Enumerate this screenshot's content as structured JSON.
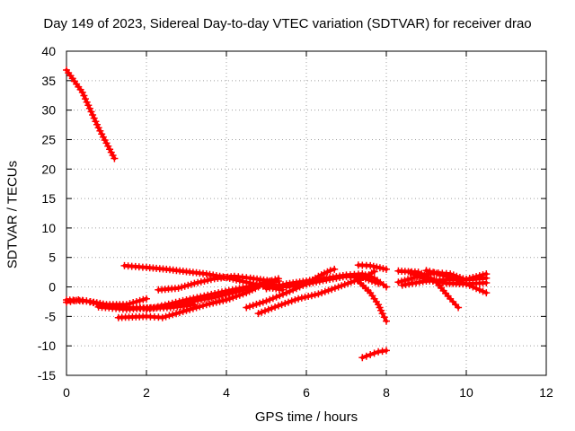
{
  "chart_data": {
    "type": "line",
    "title": "Day 149 of 2023, Sidereal Day-to-day VTEC variation (SDTVAR) for receiver drao",
    "xlabel": "GPS time / hours",
    "ylabel": "SDTVAR / TECUs",
    "xlim": [
      0,
      12
    ],
    "ylim": [
      -15,
      40
    ],
    "xticks": [
      0,
      2,
      4,
      6,
      8,
      10,
      12
    ],
    "yticks": [
      -15,
      -10,
      -5,
      0,
      5,
      10,
      15,
      20,
      25,
      30,
      35,
      40
    ],
    "grid": true,
    "color": "#ff0000",
    "series": [
      {
        "name": "s1",
        "points": [
          [
            0.0,
            36.8
          ],
          [
            0.4,
            33.0
          ],
          [
            0.8,
            27.0
          ],
          [
            1.2,
            21.8
          ]
        ]
      },
      {
        "name": "s2",
        "points": [
          [
            0.0,
            -2.6
          ],
          [
            0.3,
            -2.2
          ],
          [
            0.6,
            -2.5
          ],
          [
            1.0,
            -3.0
          ],
          [
            1.5,
            -3.0
          ],
          [
            2.0,
            -2.0
          ]
        ]
      },
      {
        "name": "s3",
        "points": [
          [
            0.0,
            -2.2
          ],
          [
            0.5,
            -2.4
          ],
          [
            1.0,
            -3.2
          ],
          [
            1.5,
            -3.5
          ],
          [
            2.0,
            -3.6
          ],
          [
            2.6,
            -3.5
          ],
          [
            3.2,
            -3.0
          ]
        ]
      },
      {
        "name": "s4",
        "points": [
          [
            0.8,
            -3.4
          ],
          [
            1.5,
            -3.8
          ],
          [
            2.2,
            -3.5
          ],
          [
            3.0,
            -2.2
          ],
          [
            3.8,
            -1.0
          ],
          [
            4.5,
            0.0
          ],
          [
            5.0,
            0.6
          ],
          [
            5.3,
            1.0
          ]
        ]
      },
      {
        "name": "s5",
        "points": [
          [
            1.3,
            -5.2
          ],
          [
            2.0,
            -5.0
          ],
          [
            2.4,
            -5.2
          ],
          [
            3.0,
            -4.0
          ],
          [
            3.5,
            -3.0
          ],
          [
            4.0,
            -2.2
          ],
          [
            4.5,
            -1.0
          ],
          [
            4.8,
            0.0
          ]
        ]
      },
      {
        "name": "s6",
        "points": [
          [
            2.0,
            -3.8
          ],
          [
            2.6,
            -3.2
          ],
          [
            3.2,
            -2.4
          ],
          [
            3.8,
            -1.6
          ],
          [
            4.4,
            -0.6
          ],
          [
            4.9,
            0.6
          ],
          [
            5.3,
            1.4
          ]
        ]
      },
      {
        "name": "s7",
        "points": [
          [
            1.45,
            3.6
          ],
          [
            2.0,
            3.3
          ],
          [
            2.5,
            3.0
          ],
          [
            3.0,
            2.6
          ],
          [
            3.5,
            2.2
          ],
          [
            4.0,
            1.6
          ],
          [
            4.5,
            0.8
          ],
          [
            5.0,
            0.0
          ],
          [
            5.4,
            -0.5
          ]
        ]
      },
      {
        "name": "s8",
        "points": [
          [
            2.3,
            -0.5
          ],
          [
            2.8,
            -0.2
          ],
          [
            3.2,
            0.6
          ],
          [
            3.7,
            1.4
          ],
          [
            4.2,
            1.8
          ],
          [
            4.6,
            1.5
          ],
          [
            5.1,
            1.0
          ]
        ]
      },
      {
        "name": "s9",
        "points": [
          [
            4.5,
            -3.5
          ],
          [
            5.0,
            -2.4
          ],
          [
            5.5,
            -1.0
          ],
          [
            6.0,
            0.5
          ],
          [
            6.3,
            1.8
          ],
          [
            6.6,
            2.8
          ],
          [
            6.7,
            3.0
          ]
        ]
      },
      {
        "name": "s10",
        "points": [
          [
            4.8,
            -4.5
          ],
          [
            5.3,
            -3.2
          ],
          [
            5.8,
            -2.0
          ],
          [
            6.3,
            -1.2
          ],
          [
            6.8,
            0.0
          ],
          [
            7.2,
            1.0
          ],
          [
            7.5,
            1.8
          ],
          [
            7.7,
            2.6
          ]
        ]
      },
      {
        "name": "s11",
        "points": [
          [
            5.0,
            -0.3
          ],
          [
            5.5,
            0.5
          ],
          [
            6.0,
            1.0
          ],
          [
            6.5,
            1.5
          ],
          [
            7.0,
            2.0
          ],
          [
            7.4,
            2.2
          ],
          [
            7.7,
            1.5
          ],
          [
            8.0,
            0.0
          ]
        ]
      },
      {
        "name": "s12",
        "points": [
          [
            4.6,
            0.0
          ],
          [
            5.0,
            0.5
          ],
          [
            5.5,
            0.0
          ],
          [
            6.0,
            0.5
          ],
          [
            6.5,
            1.2
          ],
          [
            7.0,
            1.8
          ],
          [
            7.4,
            1.6
          ],
          [
            7.8,
            0.6
          ]
        ]
      },
      {
        "name": "s13",
        "points": [
          [
            7.3,
            1.0
          ],
          [
            7.6,
            -1.0
          ],
          [
            7.8,
            -3.0
          ],
          [
            7.9,
            -4.5
          ],
          [
            8.0,
            -5.8
          ]
        ]
      },
      {
        "name": "s14",
        "points": [
          [
            7.3,
            3.7
          ],
          [
            7.6,
            3.6
          ],
          [
            8.0,
            3.0
          ]
        ]
      },
      {
        "name": "s15",
        "points": [
          [
            7.4,
            -12.0
          ],
          [
            7.6,
            -11.5
          ],
          [
            7.8,
            -11.0
          ],
          [
            8.0,
            -10.8
          ]
        ]
      },
      {
        "name": "s16",
        "points": [
          [
            8.3,
            2.7
          ],
          [
            8.8,
            2.5
          ],
          [
            9.2,
            1.2
          ],
          [
            9.6,
            -2.0
          ],
          [
            9.8,
            -3.5
          ]
        ]
      },
      {
        "name": "s17",
        "points": [
          [
            8.3,
            0.8
          ],
          [
            8.7,
            1.6
          ],
          [
            9.2,
            2.4
          ],
          [
            9.6,
            2.2
          ],
          [
            10.0,
            1.2
          ],
          [
            10.5,
            1.5
          ]
        ]
      },
      {
        "name": "s18",
        "points": [
          [
            8.4,
            0.3
          ],
          [
            9.0,
            1.0
          ],
          [
            9.5,
            1.2
          ],
          [
            10.0,
            1.3
          ],
          [
            10.5,
            2.2
          ]
        ]
      },
      {
        "name": "s19",
        "points": [
          [
            9.0,
            2.8
          ],
          [
            9.6,
            1.6
          ],
          [
            10.0,
            0.5
          ],
          [
            10.5,
            -1.0
          ]
        ]
      },
      {
        "name": "s20",
        "points": [
          [
            8.6,
            2.4
          ],
          [
            9.0,
            1.2
          ],
          [
            9.5,
            0.6
          ],
          [
            10.0,
            0.5
          ],
          [
            10.5,
            0.7
          ]
        ]
      }
    ]
  }
}
